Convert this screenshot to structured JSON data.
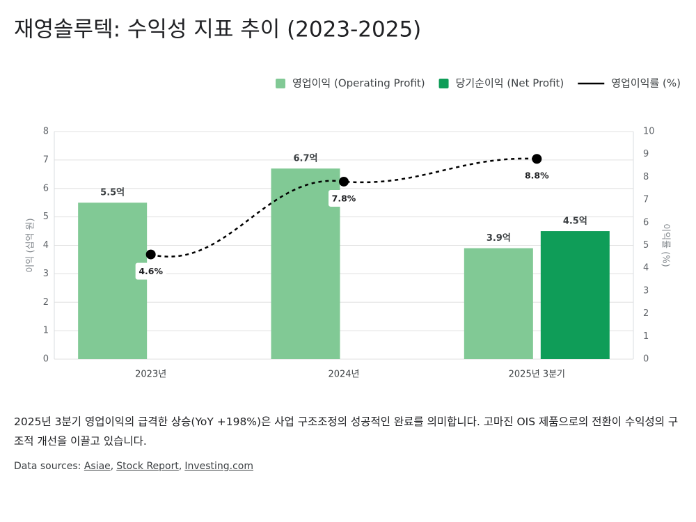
{
  "chart_data": {
    "type": "bar",
    "title": "재영솔루텍: 수익성 지표 추이 (2023-2025)",
    "y_label": "이익 (십억 원)",
    "y2_label": "이익률 (%)",
    "categories": [
      "2023년",
      "2024년",
      "2025년 3분기"
    ],
    "series": [
      {
        "name": "영업이익 (Operating Profit)",
        "type": "bar",
        "color": "#81c995",
        "values": [
          5.5,
          6.7,
          3.9
        ],
        "value_labels": [
          "5.5억",
          "6.7억",
          "3.9억"
        ]
      },
      {
        "name": "당기순이익 (Net Profit)",
        "type": "bar",
        "color": "#0f9d58",
        "values": [
          null,
          null,
          4.5
        ],
        "value_labels": [
          null,
          null,
          "4.5억"
        ]
      },
      {
        "name": "영업이익률 (%)",
        "type": "line",
        "axis": "y2",
        "color": "#000000",
        "dashed": true,
        "values": [
          4.6,
          7.8,
          8.8
        ],
        "value_labels": [
          "4.6%",
          "7.8%",
          "8.8%"
        ]
      }
    ],
    "ylim": [
      0,
      8
    ],
    "yticks": [
      0,
      1,
      2,
      3,
      4,
      5,
      6,
      7,
      8
    ],
    "y2lim": [
      0,
      10
    ],
    "y2ticks": [
      0,
      1,
      2,
      3,
      4,
      5,
      6,
      7,
      8,
      9,
      10
    ],
    "grid": true,
    "legend": "top-right"
  },
  "description": "2025년 3분기 영업이익의 급격한 상승(YoY +198%)은 사업 구조조정의 성공적인 완료를 의미합니다. 고마진 OIS 제품으로의 전환이 수익성의 구조적 개선을 이끌고 있습니다.",
  "sources": {
    "label": "Data sources:",
    "items": [
      "Asiae",
      "Stock Report",
      "Investing.com"
    ]
  }
}
